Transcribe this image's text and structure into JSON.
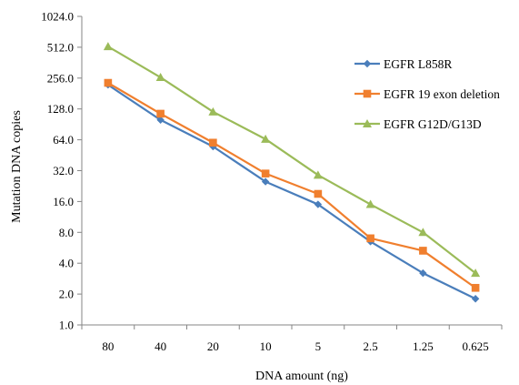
{
  "chart_data": {
    "type": "line",
    "xlabel": "DNA amount (ng)",
    "ylabel": "Mutation DNA copies",
    "y_scale": "log2",
    "ylim": [
      1,
      1024
    ],
    "y_ticks": [
      "1024.0",
      "512.0",
      "256.0",
      "128.0",
      "64.0",
      "32.0",
      "16.0",
      "8.0",
      "4.0",
      "2.0",
      "1.0"
    ],
    "grid": false,
    "legend_position": "right",
    "categories": [
      "80",
      "40",
      "20",
      "10",
      "5",
      "2.5",
      "1.25",
      "0.625"
    ],
    "series": [
      {
        "name": "EGFR L858R",
        "color": "#4a7ebb",
        "marker": "diamond",
        "values": [
          220,
          100,
          55,
          25,
          15,
          6.5,
          3.2,
          1.8
        ]
      },
      {
        "name": "EGFR 19 exon deletion",
        "color": "#f07f2e",
        "marker": "square",
        "values": [
          230,
          115,
          60,
          30,
          19,
          7,
          5.3,
          2.3
        ]
      },
      {
        "name": "EGFR G12D/G13D",
        "color": "#9bbb59",
        "marker": "triangle",
        "values": [
          520,
          260,
          120,
          65,
          29,
          15,
          8,
          3.2
        ]
      }
    ]
  }
}
